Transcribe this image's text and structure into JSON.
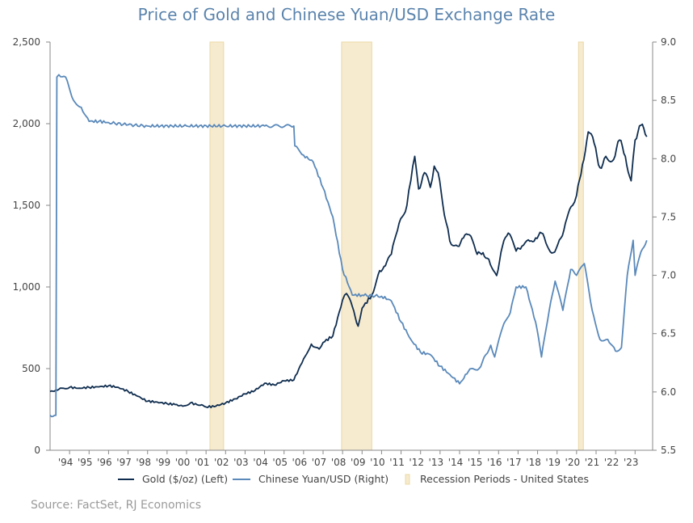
{
  "chart_data": {
    "type": "line",
    "title": "Price of Gold and Chinese Yuan/USD Exchange Rate",
    "source": "Source: FactSet, RJ Economics",
    "x_tick_labels": [
      "'94",
      "'95",
      "'96",
      "'97",
      "'98",
      "'99",
      "'00",
      "'01",
      "'02",
      "'03",
      "'04",
      "'05",
      "'06",
      "'07",
      "'08",
      "'09",
      "'10",
      "'11",
      "'12",
      "'13",
      "'14",
      "'15",
      "'16",
      "'17",
      "'18",
      "'19",
      "'20",
      "'21",
      "'22",
      "'23"
    ],
    "x_range": [
      1993.0,
      2023.9
    ],
    "y_left": {
      "label": "Gold ($/oz) (Left)",
      "range": [
        0,
        2500
      ],
      "ticks": [
        0,
        500,
        1000,
        1500,
        2000,
        2500
      ],
      "tick_labels": [
        "0",
        "500",
        "1,000",
        "1,500",
        "2,000",
        "2,500"
      ]
    },
    "y_right": {
      "label": "Chinese Yuan/USD (Right)",
      "range": [
        5.5,
        9.0
      ],
      "ticks": [
        5.5,
        6.0,
        6.5,
        7.0,
        7.5,
        8.0,
        8.5,
        9.0
      ],
      "tick_labels": [
        "5.5",
        "6.0",
        "6.5",
        "7.0",
        "7.5",
        "8.0",
        "8.5",
        "9.0"
      ]
    },
    "colors": {
      "gold": "#0f2d4f",
      "yuan": "#5a89ba",
      "recession": "#f6ebcf",
      "recession_border": "#e9d8a6",
      "axis": "#888888"
    },
    "recessions": [
      [
        2001.2,
        2001.9
      ],
      [
        2007.95,
        2009.5
      ],
      [
        2020.1,
        2020.35
      ]
    ],
    "legend": [
      "Gold ($/oz) (Left)",
      "Chinese Yuan/USD (Right)",
      "Recession Periods - United States"
    ],
    "series": [
      {
        "name": "Gold ($/oz) (Left)",
        "axis": "left",
        "x": [
          1993.0,
          1993.3,
          1993.6,
          1994.0,
          1994.5,
          1995.0,
          1995.5,
          1996.0,
          1996.5,
          1997.0,
          1997.5,
          1998.0,
          1998.5,
          1999.0,
          1999.5,
          1999.8,
          2000.2,
          2000.7,
          2001.0,
          2001.5,
          2002.0,
          2002.5,
          2003.0,
          2003.5,
          2004.0,
          2004.5,
          2005.0,
          2005.5,
          2006.0,
          2006.4,
          2006.8,
          2007.0,
          2007.5,
          2008.0,
          2008.2,
          2008.5,
          2008.8,
          2009.0,
          2009.5,
          2009.9,
          2010.2,
          2010.5,
          2010.9,
          2011.3,
          2011.5,
          2011.7,
          2011.9,
          2012.2,
          2012.5,
          2012.7,
          2012.9,
          2013.3,
          2013.5,
          2013.9,
          2014.2,
          2014.5,
          2014.9,
          2015.2,
          2015.5,
          2015.9,
          2016.2,
          2016.5,
          2016.9,
          2017.2,
          2017.6,
          2017.9,
          2018.2,
          2018.5,
          2018.8,
          2019.2,
          2019.5,
          2019.8,
          2020.0,
          2020.3,
          2020.6,
          2020.9,
          2021.2,
          2021.5,
          2021.9,
          2022.2,
          2022.5,
          2022.8,
          2023.0,
          2023.3,
          2023.6
        ],
        "values": [
          360,
          370,
          380,
          385,
          380,
          385,
          388,
          395,
          385,
          360,
          330,
          300,
          295,
          285,
          280,
          270,
          290,
          275,
          265,
          270,
          290,
          315,
          345,
          365,
          410,
          400,
          425,
          430,
          560,
          650,
          620,
          660,
          700,
          920,
          960,
          880,
          760,
          870,
          950,
          1100,
          1130,
          1200,
          1390,
          1500,
          1650,
          1800,
          1600,
          1700,
          1610,
          1740,
          1700,
          1400,
          1280,
          1250,
          1300,
          1320,
          1200,
          1210,
          1170,
          1070,
          1250,
          1330,
          1220,
          1250,
          1280,
          1300,
          1330,
          1250,
          1210,
          1300,
          1420,
          1500,
          1560,
          1750,
          1950,
          1880,
          1730,
          1800,
          1780,
          1900,
          1800,
          1650,
          1900,
          1990,
          1920
        ]
      },
      {
        "name": "Chinese Yuan/USD (Right)",
        "axis": "right",
        "x": [
          1993.0,
          1993.3,
          1993.35,
          1993.45,
          1993.8,
          1994.2,
          1994.6,
          1995.0,
          1995.5,
          1996.0,
          1997.0,
          1998.0,
          2000.0,
          2002.0,
          2004.0,
          2005.5,
          2005.55,
          2006.0,
          2006.5,
          2007.0,
          2007.5,
          2008.0,
          2008.5,
          2009.0,
          2010.0,
          2010.5,
          2011.0,
          2011.5,
          2012.0,
          2012.5,
          2013.0,
          2013.5,
          2014.0,
          2014.3,
          2014.6,
          2015.0,
          2015.6,
          2015.8,
          2016.2,
          2016.6,
          2016.9,
          2017.4,
          2017.9,
          2018.2,
          2018.6,
          2018.9,
          2019.3,
          2019.7,
          2020.0,
          2020.4,
          2020.8,
          2021.2,
          2021.6,
          2022.0,
          2022.3,
          2022.6,
          2022.9,
          2023.0,
          2023.3,
          2023.6
        ],
        "values": [
          5.8,
          5.8,
          8.7,
          8.72,
          8.7,
          8.5,
          8.44,
          8.32,
          8.32,
          8.31,
          8.29,
          8.28,
          8.28,
          8.28,
          8.28,
          8.28,
          8.11,
          8.03,
          7.97,
          7.75,
          7.5,
          7.05,
          6.83,
          6.83,
          6.82,
          6.78,
          6.6,
          6.45,
          6.34,
          6.32,
          6.22,
          6.15,
          6.07,
          6.15,
          6.2,
          6.2,
          6.4,
          6.3,
          6.55,
          6.68,
          6.9,
          6.9,
          6.6,
          6.3,
          6.7,
          6.95,
          6.7,
          7.05,
          7.0,
          7.1,
          6.7,
          6.45,
          6.45,
          6.35,
          6.38,
          7.0,
          7.3,
          7.0,
          7.2,
          7.3
        ]
      }
    ]
  }
}
